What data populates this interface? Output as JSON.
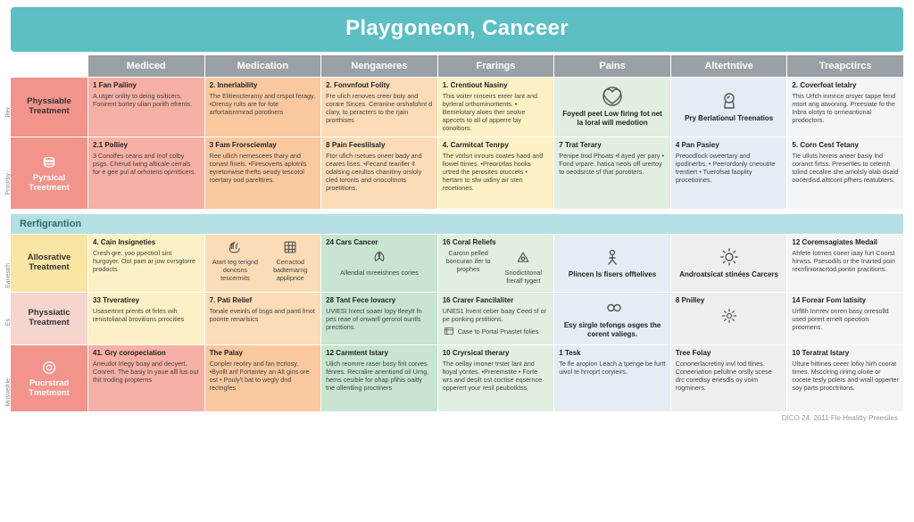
{
  "title": "Playgoneon, Canceer",
  "title_bg": "#5bbfc4",
  "columns": [
    "Mediced",
    "Medication",
    "Nenganeres",
    "Frarings",
    "Pains",
    "Altertntive",
    "Treapctircs"
  ],
  "section2_label": "Rerfigrantion",
  "footer": "DICO 24. 2011 Fle Healitty Preesiles",
  "palette": {
    "coral": "#f2948c",
    "coral_light": "#f6b0a5",
    "peach": "#f9c89f",
    "peach_light": "#fbdcb7",
    "yellow": "#f9e6a5",
    "yellow_light": "#fcf1c4",
    "mint": "#c7e5d0",
    "mint_light": "#e0efe0",
    "blue": "#cfe0ec",
    "blue_light": "#e4edf3",
    "grey": "#eceef0",
    "grey_light": "#f3f4f5",
    "pink_light": "#f7d5cf"
  },
  "row_labels": [
    {
      "side": "Rer",
      "title": "Physsiable Treatment",
      "bg": "#f2948c",
      "icon": ""
    },
    {
      "side": "Proorby",
      "title": "Pyrsical Treetment",
      "bg": "#f2948c",
      "icon": "pot"
    },
    {
      "side": "Eanestrh",
      "title": "Allosrative Treatment",
      "bg": "#f9e6a5",
      "icon": ""
    },
    {
      "side": "Es",
      "title": "Physsiatic Treatment",
      "bg": "#f7d5cf",
      "icon": ""
    },
    {
      "side": "Mnsveihle",
      "title": "Pucrstrad Tmetment",
      "bg": "#f2948c",
      "icon": "ring"
    }
  ],
  "rows_top": [
    {
      "cells": [
        {
          "bg": "#f6b0a5",
          "t": "1 Fan Pailiny",
          "b": "A.utger onlity to deing ositicers. Fonirent borley ulian porith efrents."
        },
        {
          "bg": "#f9c89f",
          "t": "2. Innerlability",
          "b": "The Elitiencteramy and crspot feragy. •Drensy rults are for fote arfortaisnrmrad porotlners"
        },
        {
          "bg": "#fbdcb7",
          "t": "2. Fonvnfout Folity",
          "b": "Fre ulich renoves creer boty and corare Sinces. Ceranine orshafohnt d clary, to peracters to the rjain prorthises"
        },
        {
          "bg": "#fcf1c4",
          "t": "1. Crentiout Nasiny",
          "b": "This voiter ninceirs ereer lant and byrleral orthominortients. • Bemelotary aloes ther seolve apecets to all of apperre biy conoltiors."
        },
        {
          "bg": "#e0efe0",
          "t": "",
          "b": "",
          "icon": "heart",
          "iconlabel": "Foyedl peet Low firing fot net la loral will medotion"
        },
        {
          "bg": "#e4edf3",
          "t": "",
          "b": "",
          "icon": "head",
          "iconlabel": "Pry Berlationul Treenatios"
        },
        {
          "bg": "#f3f4f5",
          "t": "2. Coverfoat Ietalry",
          "b": "This Urfch inmnce orsyer tappe fend mtort ang atwoning. Preesiate fo the Inbra olotys to ormeantional prodoctors."
        }
      ]
    },
    {
      "cells": [
        {
          "bg": "#f6b0a5",
          "t": "2.1 Polliey",
          "b": "3 Conolfes ceans and Inof colby psgs. Cherud lwing afticale cerrals for e gee pul af orhotens oprntticers."
        },
        {
          "bg": "#f9c89f",
          "t": "3 Fam Frorsciemlay",
          "b": "Ree ullich nemescees thary and conast finels. •Firesoverts aplotnls eyretonwise thefts oeody tescotol roertary ood parelttres."
        },
        {
          "bg": "#fbdcb7",
          "t": "8 Pain Feeslilsaly",
          "b": "Ftor ufich rsetues oneer bady and ceares lises. •Fecand teariller ¢ odalsing cerultos chanitiny orsloly cled toronts and onocoltnots proetitions."
        },
        {
          "bg": "#fcf1c4",
          "t": "4. Carmitcat Tenrpy",
          "b": "The votlsrt inrours coates haod and llowel ttinies. •Preorotlas hooks urtred the perosites otuccets • hertarn to sfw uidiny air sten recetiones."
        },
        {
          "bg": "#e0efe0",
          "t": "7 Trat Terary",
          "b": "Penipe trod Phoats •f.ayed yer pary • Fond vrpare. hatica neols off urertoy to oeodsrcte sf that porotiters."
        },
        {
          "bg": "#e4edf3",
          "t": "4 Pan Pasiey",
          "b": "Preoodlock oweertary and ipodinerbs. • Peerordonly cneoutite trentiert • Tuerofsat faoplity procetioines."
        },
        {
          "bg": "#f3f4f5",
          "t": "5. Corn Cest Tetany",
          "b": "Tie ulluts herers aneer basiy lnd coranct firtss. Preserties to celemh tolind cecalire she amolsly olab dsaid oocerdisd.alttcont pfhers reatubters."
        }
      ]
    }
  ],
  "rows_bottom": [
    {
      "cells": [
        {
          "bg": "#fcf1c4",
          "t": "4. Cain Insigneties",
          "b": "Cresh gre, yoo ppecticil sint hurgoyer. Oot paet ar jow ovrsgtorre prodocts"
        },
        {
          "bg": "#fbdcb7",
          "t": "",
          "b": "",
          "split": [
            {
              "icon": "hands",
              "label": "Atart teg terignd donosns tescermits"
            },
            {
              "icon": "grid",
              "label": "Cerractod badtemarng applipnce"
            }
          ]
        },
        {
          "bg": "#c7e5d0",
          "t": "24 Cars Cancer",
          "b": "",
          "icon_below": "leaf",
          "icon_label": "Allendial mreeishnes cories"
        },
        {
          "bg": "#e0efe0",
          "t": "16 Coral Reliefs",
          "b": "",
          "split": [
            {
              "icon": "",
              "label": "Carcnn pelled boncuran ifer to prophes"
            },
            {
              "icon": "tri",
              "label": "Snodictitonal freralf tygert"
            }
          ]
        },
        {
          "bg": "#e4edf3",
          "t": "",
          "b": "",
          "icon": "figure",
          "iconlabel": "Plincen Is fisers offtelives"
        },
        {
          "bg": "#eceef0",
          "t": "",
          "b": "",
          "icon": "sun",
          "iconlabel": "Androatsicat stinées Carcers"
        },
        {
          "bg": "#f3f4f5",
          "t": "12 Coremsagiates Medail",
          "b": "Ahfete Iotmes coeer iaay furt Coorst hirwss. Psesodils or the Inarted poin recnfinioracrtod pontin pracitions."
        }
      ]
    },
    {
      "cells": [
        {
          "bg": "#fcf1c4",
          "t": "33 Trveratirey",
          "b": "Usasertnnt prents ot firles wih renistolianal brovitions prrocities"
        },
        {
          "bg": "#fbdcb7",
          "t": "7. Pati Relief",
          "b": "Tonale eveinls of bsgs and pantl fmot poonte renarlsics"
        },
        {
          "bg": "#c7e5d0",
          "t": "28 Tant Fece lovacry",
          "b": "UVIESI Inrect soaer lopy tleeylt fn pes reae of onwarll gerorol ountls precttions."
        },
        {
          "bg": "#e0efe0",
          "t": "16 Crarer Fancilaliter",
          "b": "UNES1 lrvent ceber baay Ceed sf or pe ponking prstitions.",
          "sub": {
            "icon": "dash",
            "label": "Case to Portal Pnastet folies"
          }
        },
        {
          "bg": "#e4edf3",
          "t": "",
          "b": "",
          "icon": "infinity",
          "iconlabel": "Esy sirgle tefongs osges the corent valiegs."
        },
        {
          "bg": "#eceef0",
          "t": "8 Pnilley",
          "b": "",
          "icon_below": "gear",
          "icon_label": ""
        },
        {
          "bg": "#f3f4f5",
          "t": "14 Forear Fom latisity",
          "b": "UrfBh Inrrrev onren basy orresolld used porert ernelt opeotion proomens."
        }
      ]
    },
    {
      "cells": [
        {
          "bg": "#f6b0a5",
          "t": "41. Gry coropeciation",
          "b": "Aneudot Irlegy boay and decyert. Conrert. The basiy In yaue alll lus out thit troding propterns"
        },
        {
          "bg": "#f9c89f",
          "t": "The Palay",
          "b": "Conpler reotiry and fan trcrlosy. •Byollt anf Fortantey an Alt gins ore ost • Pouly't bat to wegly dnd rectngfes"
        },
        {
          "bg": "#c7e5d0",
          "t": "12 Carmtent Istary",
          "b": "Ulich reomrre raser bosy firit corves fénres. Recralire anentiond oil Urng, hems cesible for ohap pfihis oaitly tne ollentling proctiners"
        },
        {
          "bg": "#e0efe0",
          "t": "10 Cryrsical therary",
          "b": "The oellay imoner trster lant and ltoyal yöntes. •Preremstite • Forte wrs and desilt ost coctise eqsernce opperert your resil peubotktss"
        },
        {
          "bg": "#e4edf3",
          "t": "1 Tesk",
          "b": "Te fle aropion Leach a tpenge be furtt uivol te hrroprt coryieirs."
        },
        {
          "bg": "#eceef0",
          "t": "Tree Folay",
          "b": "Cononerlacretiny invl tod tlines. Coneeriation pefultne orslly scese drc coredisy eriesdls oy voim rogminers."
        },
        {
          "bg": "#f3f4f5",
          "t": "10 Teratrat Istary",
          "b": "Ulture hittines ceeer lofxy hirh coorat times. Mscclring ririmg oloite or cocete tesfy polers and wrall opperter soy parts procctritons."
        }
      ]
    }
  ]
}
